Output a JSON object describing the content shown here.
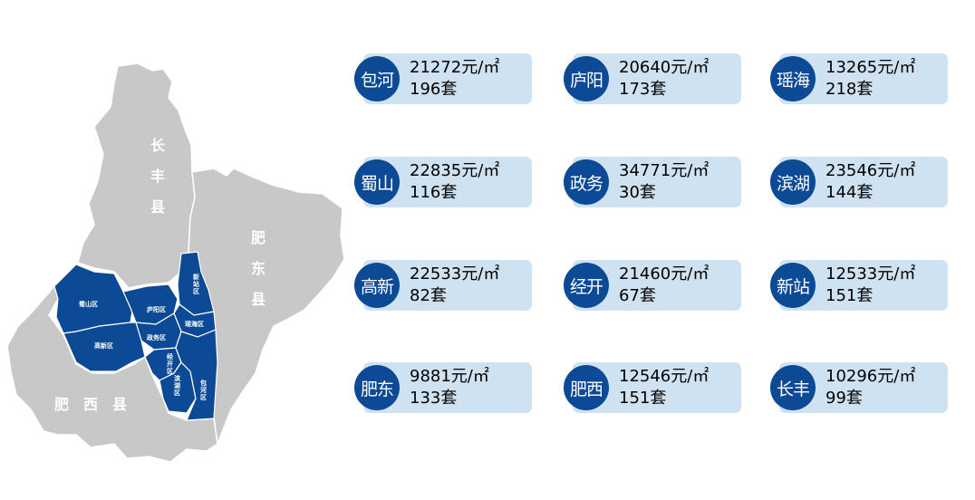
{
  "map": {
    "counties": [
      {
        "id": "changfeng",
        "label": "长丰县"
      },
      {
        "id": "feidong",
        "label": "肥东县"
      },
      {
        "id": "feixi",
        "label": "肥西县"
      }
    ],
    "districts": [
      {
        "id": "shushan",
        "label": "蜀山区"
      },
      {
        "id": "luyang",
        "label": "庐阳区"
      },
      {
        "id": "xinzhan",
        "label": "新站区"
      },
      {
        "id": "yaohai",
        "label": "瑶海区"
      },
      {
        "id": "zhengwu",
        "label": "政务区"
      },
      {
        "id": "gaoxin",
        "label": "高新区"
      },
      {
        "id": "jingkai",
        "label": "经开区"
      },
      {
        "id": "binhu",
        "label": "滨湖区"
      },
      {
        "id": "baohe",
        "label": "包河区"
      }
    ],
    "colors": {
      "county_fill": "#c8c8c8",
      "district_fill": "#0d4a96",
      "border": "#ffffff"
    }
  },
  "cards": [
    {
      "district": "包河",
      "price": "21272元/㎡",
      "count": "196套"
    },
    {
      "district": "庐阳",
      "price": "20640元/㎡",
      "count": "173套"
    },
    {
      "district": "瑶海",
      "price": "13265元/㎡",
      "count": "218套"
    },
    {
      "district": "蜀山",
      "price": "22835元/㎡",
      "count": "116套"
    },
    {
      "district": "政务",
      "price": "34771元/㎡",
      "count": "30套"
    },
    {
      "district": "滨湖",
      "price": "23546元/㎡",
      "count": "144套"
    },
    {
      "district": "高新",
      "price": "22533元/㎡",
      "count": "82套"
    },
    {
      "district": "经开",
      "price": "21460元/㎡",
      "count": "67套"
    },
    {
      "district": "新站",
      "price": "12533元/㎡",
      "count": "151套"
    },
    {
      "district": "肥东",
      "price": "9881元/㎡",
      "count": "133套"
    },
    {
      "district": "肥西",
      "price": "12546元/㎡",
      "count": "151套"
    },
    {
      "district": "长丰",
      "price": "10296元/㎡",
      "count": "99套"
    }
  ],
  "colors": {
    "circle": "#0d4a96",
    "pill": "#cfe2f1"
  }
}
